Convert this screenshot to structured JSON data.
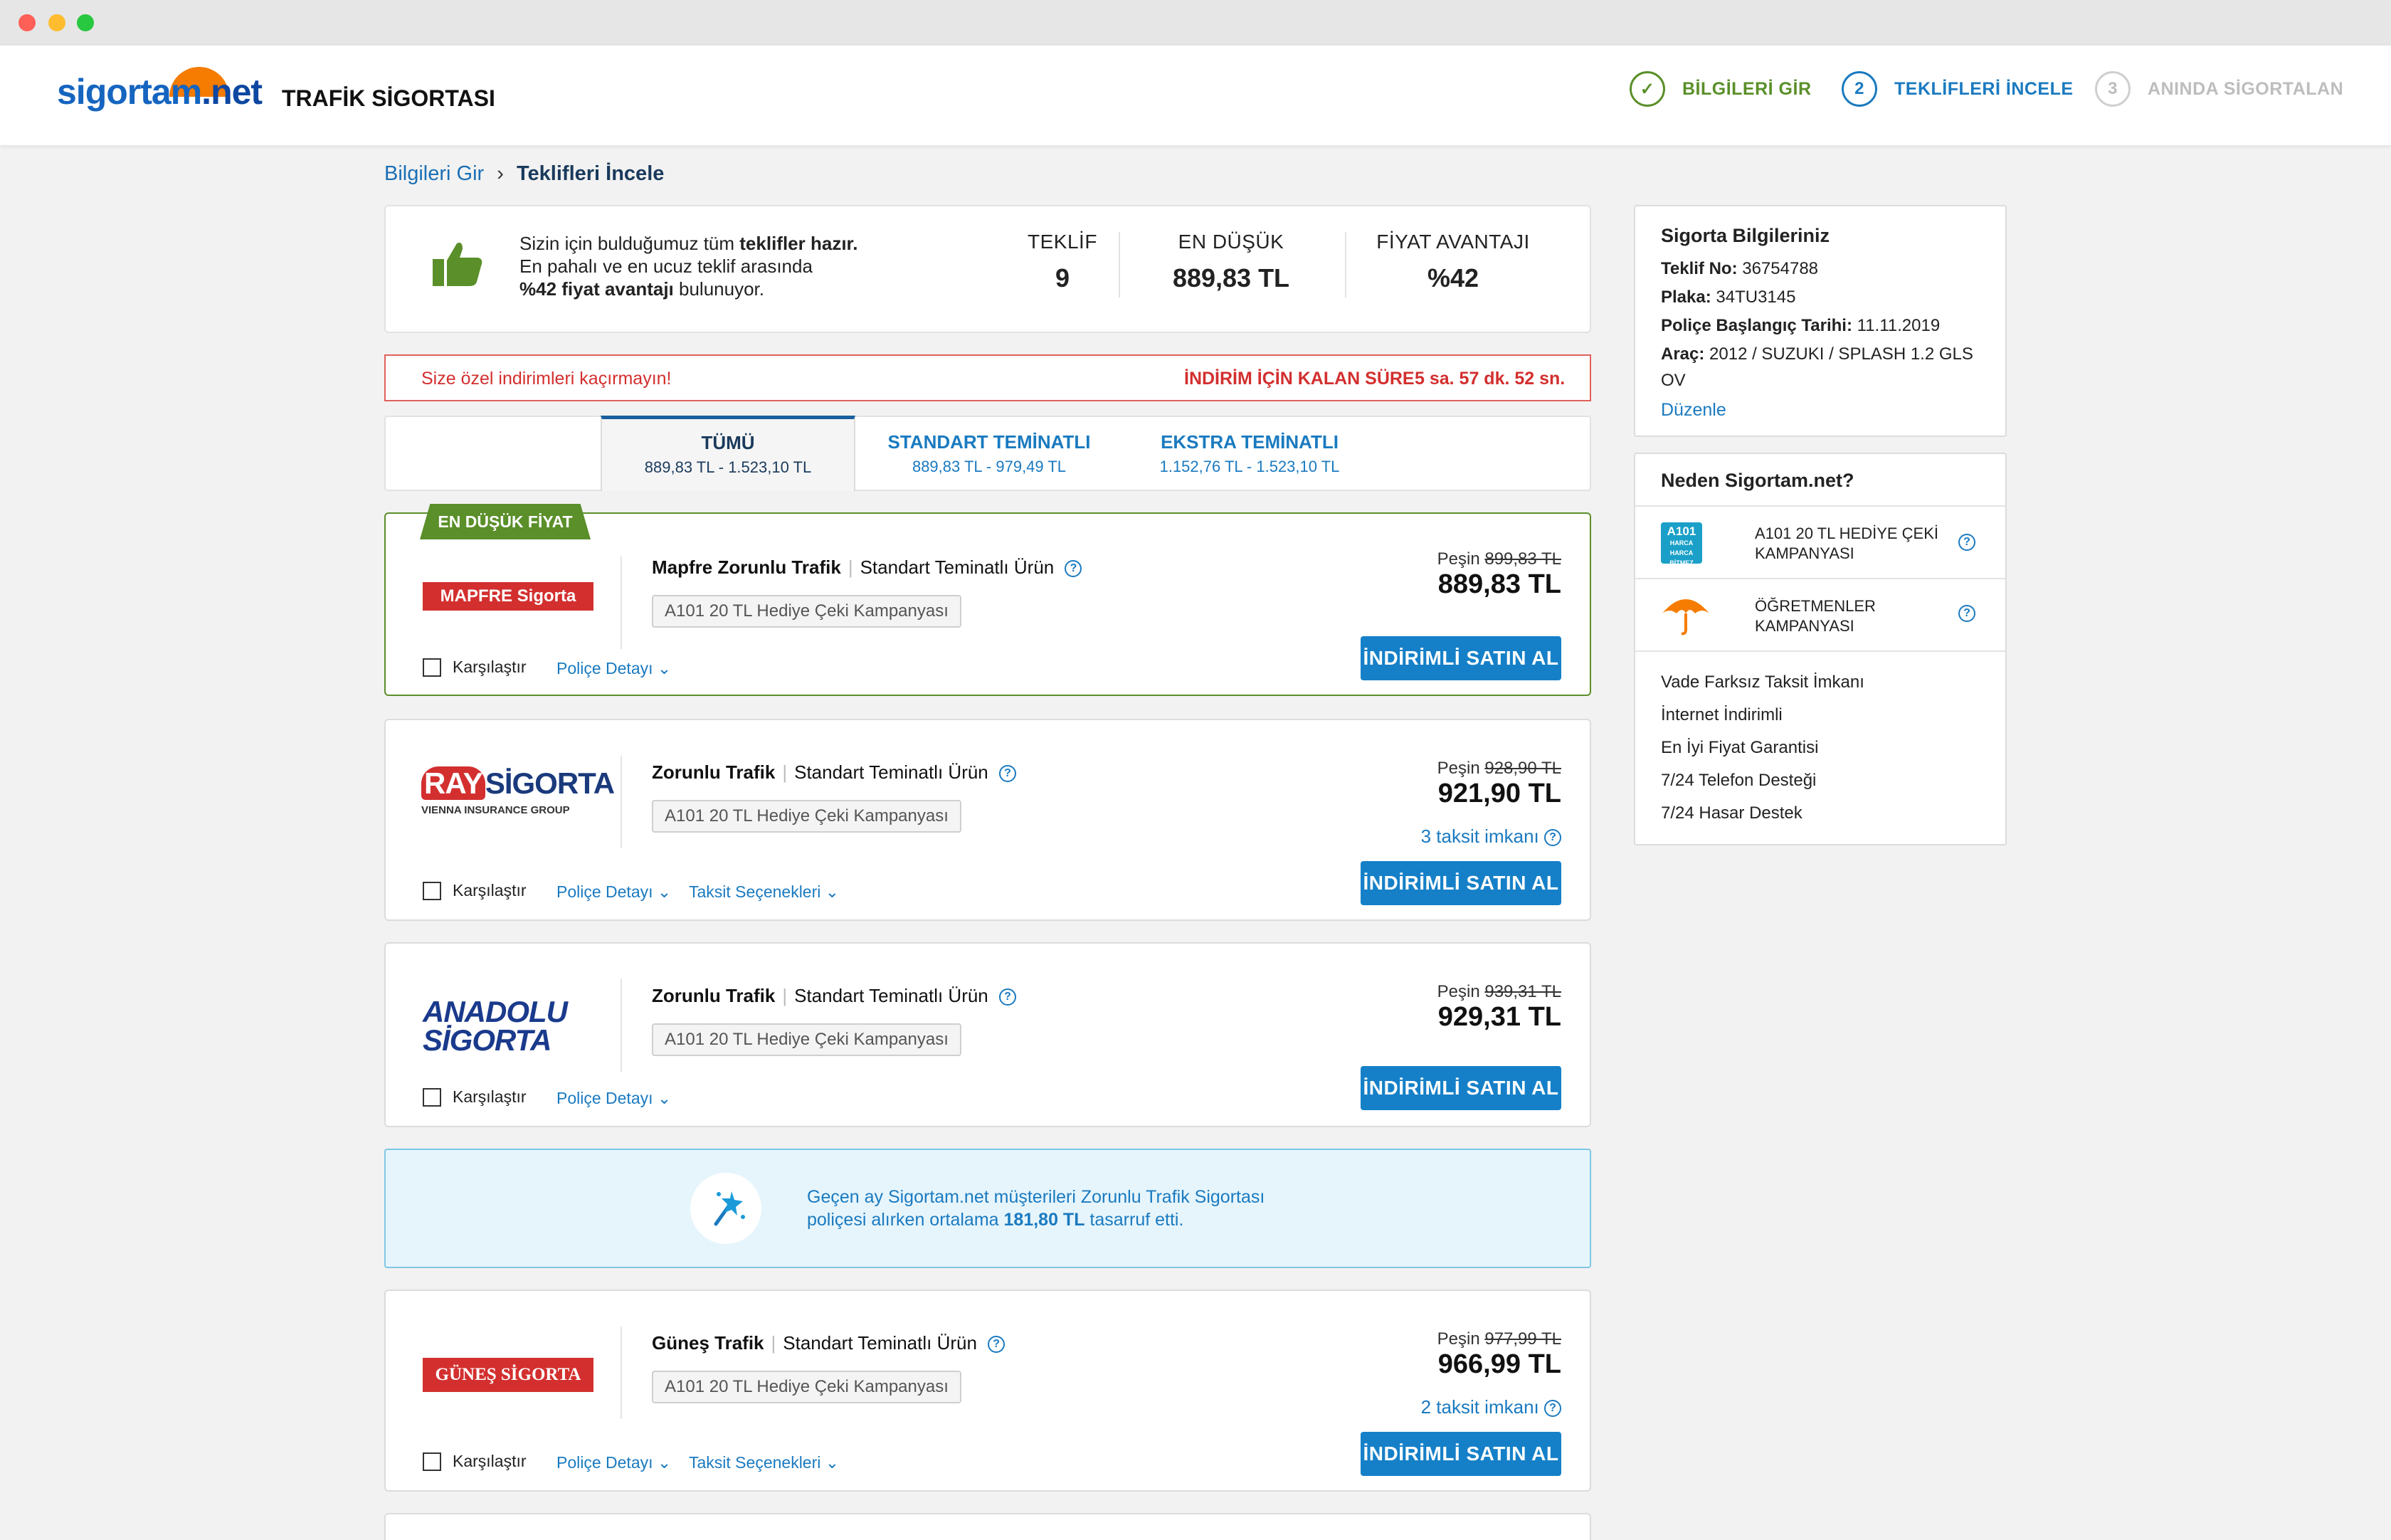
{
  "header": {
    "logo_text": "sigortam",
    "logo_suffix": ".net",
    "title": "TRAFİK SİGORTASI",
    "steps": [
      {
        "num": "✓",
        "label": "BİLGİLERİ GİR",
        "color": "#5a8f29"
      },
      {
        "num": "2",
        "label": "TEKLİFLERİ İNCELE",
        "color": "#1a7ac0"
      },
      {
        "num": "3",
        "label": "ANINDA SİGORTALAN",
        "color": "#bdbdbd"
      }
    ]
  },
  "breadcrumb": {
    "first": "Bilgileri Gir",
    "sep": "›",
    "current": "Teklifleri İncele"
  },
  "summary": {
    "line1_pre": "Sizin için bulduğumuz tüm ",
    "line1_bold": "teklifler hazır.",
    "line2": "En pahalı ve en ucuz teklif arasında",
    "line3_bold": "%42 fiyat avantajı",
    "line3_post": " bulunuyor.",
    "stats": [
      {
        "label": "TEKLİF",
        "value": "9"
      },
      {
        "label": "EN DÜŞÜK",
        "value": "889,83 TL"
      },
      {
        "label": "FİYAT AVANTAJI",
        "value": "%42"
      }
    ]
  },
  "promo": {
    "message": "Size özel indirimleri kaçırmayın!",
    "countdown_label": "İNDİRİM İÇİN KALAN SÜRE",
    "countdown_value": "5 sa. 57 dk. 52 sn."
  },
  "tabs": [
    {
      "title": "TÜMÜ",
      "range": "889,83 TL - 1.523,10 TL"
    },
    {
      "title": "STANDART TEMİNATLI",
      "range": "889,83 TL - 979,49 TL"
    },
    {
      "title": "EKSTRA TEMİNATLI",
      "range": "1.152,76 TL - 1.523,10 TL"
    }
  ],
  "badge": "EN DÜŞÜK FİYAT",
  "common": {
    "campaign": "A101 20 TL Hediye Çeki Kampanyası",
    "compare": "Karşılaştır",
    "policy": "Poliçe Detayı",
    "installments": "Taksit Seçenekleri",
    "buy": "İNDİRİMLİ SATIN AL",
    "peshin": "Peşin",
    "coverage": "Standart Teminatlı Ürün"
  },
  "offers": [
    {
      "logo": "MAPFRE Sigorta",
      "product": "Mapfre Zorunlu Trafik",
      "old_price": "899,83 TL",
      "price": "889,83 TL"
    },
    {
      "logo_a": "RAY",
      "logo_b": "SİGORTA",
      "logo_sub": "VIENNA INSURANCE GROUP",
      "product": "Zorunlu Trafik",
      "old_price": "928,90 TL",
      "price": "921,90 TL",
      "taksit": "3 taksit imkanı"
    },
    {
      "logo_a": "ANADOLU",
      "logo_b": "SİGORTA",
      "product": "Zorunlu Trafik",
      "old_price": "939,31 TL",
      "price": "929,31 TL"
    },
    {
      "logo": "GÜNEŞ SİGORTA",
      "product": "Güneş Trafik",
      "old_price": "977,99 TL",
      "price": "966,99 TL",
      "taksit": "2 taksit imkanı"
    }
  ],
  "info_banner": {
    "line1": "Geçen ay Sigortam.net müşterileri Zorunlu Trafik Sigortası",
    "line2_pre": "poliçesi alırken ortalama ",
    "line2_bold": "181,80 TL",
    "line2_post": " tasarruf etti."
  },
  "sidebar": {
    "info_title": "Sigorta Bilgileriniz",
    "rows": [
      {
        "k": "Teklif No:",
        "v": " 36754788"
      },
      {
        "k": "Plaka:",
        "v": " 34TU3145"
      },
      {
        "k": "Poliçe Başlangıç Tarihi:",
        "v": " 11.11.2019"
      },
      {
        "k": "Araç:",
        "v": " 2012 / SUZUKI / SPLASH 1.2 GLS"
      }
    ],
    "row_cont": "OV",
    "edit": "Düzenle",
    "why_title": "Neden Sigortam.net?",
    "campaigns": [
      {
        "l1": "A101 20 TL HEDİYE ÇEKİ",
        "l2": "KAMPANYASI"
      },
      {
        "l1": "ÖĞRETMENLER",
        "l2": "KAMPANYASI"
      }
    ],
    "a101_logo": "A101",
    "a101_sub": "HARCA HARCA BİTMEZ",
    "features": [
      "Vade Farksız Taksit İmkanı",
      "İnternet İndirimli",
      "En İyi Fiyat Garantisi",
      "7/24 Telefon Desteği",
      "7/24 Hasar Destek"
    ]
  }
}
